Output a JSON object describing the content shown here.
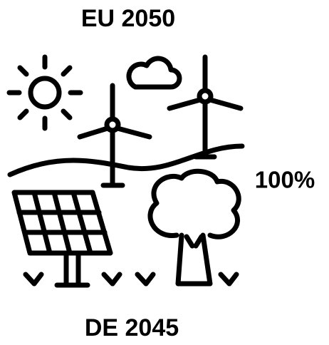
{
  "header": {
    "title": "EU 2050"
  },
  "side_label": "100%",
  "footer": {
    "title": "DE 2045"
  }
}
